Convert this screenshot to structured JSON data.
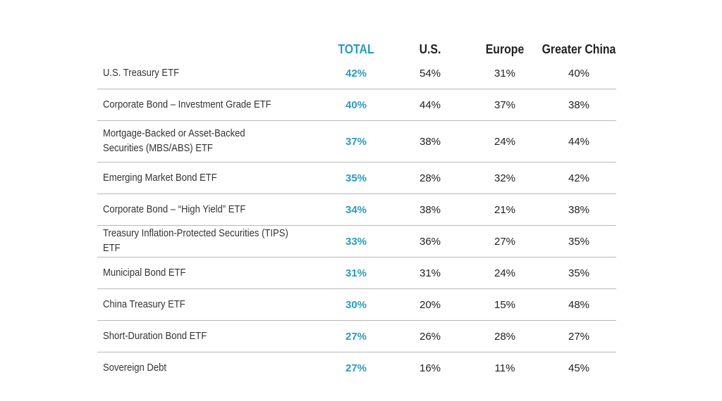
{
  "chart_data": {
    "type": "table",
    "columns": [
      "TOTAL",
      "U.S.",
      "Europe",
      "Greater China"
    ],
    "rows": [
      {
        "label": "U.S. Treasury ETF",
        "values": [
          "42%",
          "54%",
          "31%",
          "40%"
        ]
      },
      {
        "label": "Corporate Bond – Investment Grade ETF",
        "values": [
          "40%",
          "44%",
          "37%",
          "38%"
        ]
      },
      {
        "label": "Mortgage-Backed or Asset-Backed Securities (MBS/ABS) ETF",
        "values": [
          "37%",
          "38%",
          "24%",
          "44%"
        ]
      },
      {
        "label": "Emerging Market Bond ETF",
        "values": [
          "35%",
          "28%",
          "32%",
          "42%"
        ]
      },
      {
        "label": "Corporate Bond – “High Yield” ETF",
        "values": [
          "34%",
          "38%",
          "21%",
          "38%"
        ]
      },
      {
        "label": "Treasury Inflation-Protected Securities (TIPS) ETF",
        "values": [
          "33%",
          "36%",
          "27%",
          "35%"
        ]
      },
      {
        "label": "Municipal Bond ETF",
        "values": [
          "31%",
          "31%",
          "24%",
          "35%"
        ]
      },
      {
        "label": "China Treasury ETF",
        "values": [
          "30%",
          "20%",
          "15%",
          "48%"
        ]
      },
      {
        "label": "Short-Duration Bond ETF",
        "values": [
          "27%",
          "26%",
          "28%",
          "27%"
        ]
      },
      {
        "label": "Sovereign Debt",
        "values": [
          "27%",
          "16%",
          "11%",
          "45%"
        ]
      }
    ]
  },
  "colors": {
    "accent": "#2a9bbf",
    "text": "#222222",
    "divider": "#b9b9b9"
  }
}
